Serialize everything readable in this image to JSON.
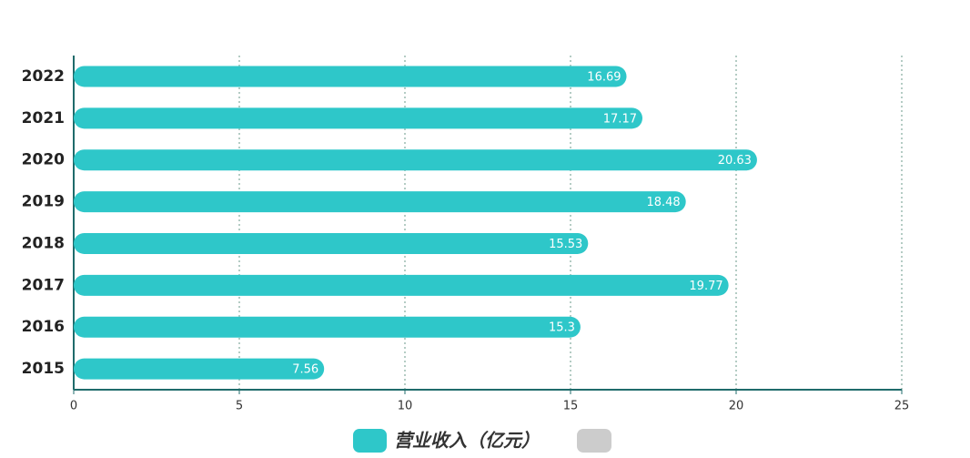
{
  "chart_data": {
    "type": "bar",
    "orientation": "horizontal",
    "categories": [
      "2022",
      "2021",
      "2020",
      "2019",
      "2018",
      "2017",
      "2016",
      "2015"
    ],
    "series": [
      {
        "name": "营业收入（亿元）",
        "color": "#2ec7c9",
        "values": [
          16.69,
          17.17,
          20.63,
          18.48,
          15.53,
          19.77,
          15.3,
          7.56
        ]
      }
    ],
    "xlim": [
      0,
      25
    ],
    "xticks": [
      0,
      5,
      10,
      15,
      20,
      25
    ],
    "grid": true
  }
}
